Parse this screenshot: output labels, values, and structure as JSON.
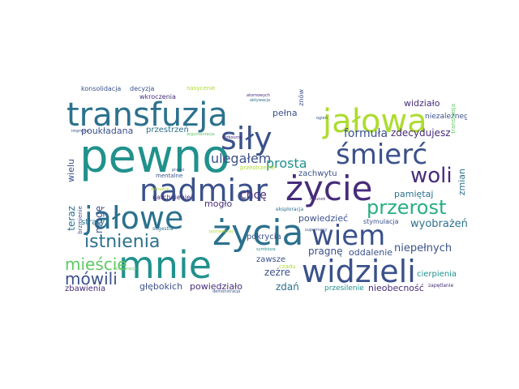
{
  "palette": {
    "dark_purple": "#472c7a",
    "indigo": "#3b518b",
    "blue": "#2c718e",
    "teal": "#21918c",
    "sea_green": "#28ae80",
    "green": "#5ec962",
    "lime": "#addc30",
    "yellow": "#d8e219"
  },
  "cloud": {
    "words": [
      {
        "text": "pewno",
        "color": "#21918c"
      },
      {
        "text": "mnie",
        "color": "#21918c"
      },
      {
        "text": "życie",
        "color": "#472c7a"
      },
      {
        "text": "życia",
        "color": "#2c718e"
      },
      {
        "text": "transfuzja",
        "color": "#2c718e"
      },
      {
        "text": "nadmiar",
        "color": "#3b518b"
      },
      {
        "text": "jałowe",
        "color": "#2c718e"
      },
      {
        "text": "jałowa",
        "color": "#addc30"
      },
      {
        "text": "śmierć",
        "color": "#3b518b"
      },
      {
        "text": "siły",
        "color": "#3b518b"
      },
      {
        "text": "widzieli",
        "color": "#3b518b"
      },
      {
        "text": "wiem",
        "color": "#3b518b"
      },
      {
        "text": "przerost",
        "color": "#28ae80"
      },
      {
        "text": "woli",
        "color": "#472c7a"
      },
      {
        "text": "istnienia",
        "color": "#2c718e"
      },
      {
        "text": "mieście",
        "color": "#5ec962"
      },
      {
        "text": "mówili",
        "color": "#3b518b"
      },
      {
        "text": "ulegałem",
        "color": "#3b518b"
      },
      {
        "text": "formuła",
        "color": "#3b518b"
      },
      {
        "text": "prosta",
        "color": "#21918c"
      },
      {
        "text": "zdecydujesz",
        "color": "#472c7a"
      },
      {
        "text": "poukładana",
        "color": "#3b518b"
      },
      {
        "text": "przestrzeń",
        "color": "#2c718e"
      },
      {
        "text": "pragnę",
        "color": "#3b518b"
      },
      {
        "text": "oddalenie",
        "color": "#3b518b"
      },
      {
        "text": "niepełnych",
        "color": "#3b518b"
      },
      {
        "text": "wyobrażeń",
        "color": "#2c718e"
      },
      {
        "text": "pamiętaj",
        "color": "#2c718e"
      },
      {
        "text": "zachwytu",
        "color": "#3b518b"
      },
      {
        "text": "chcę",
        "color": "#472c7a"
      },
      {
        "text": "mogło",
        "color": "#472c7a"
      },
      {
        "text": "powiedzieć",
        "color": "#3b518b"
      },
      {
        "text": "zeżre",
        "color": "#3b518b"
      },
      {
        "text": "zawsze",
        "color": "#3b518b"
      },
      {
        "text": "zdań",
        "color": "#2c718e"
      },
      {
        "text": "nieobecność",
        "color": "#472c7a"
      },
      {
        "text": "powiedziało",
        "color": "#472c7a"
      },
      {
        "text": "głębokich",
        "color": "#3b518b"
      },
      {
        "text": "zbawienia",
        "color": "#472c7a"
      },
      {
        "text": "cierpienia",
        "color": "#21918c"
      },
      {
        "text": "przesilenie",
        "color": "#21918c"
      },
      {
        "text": "pokrycia",
        "color": "#3b518b"
      },
      {
        "text": "pełna",
        "color": "#3b518b"
      },
      {
        "text": "widziało",
        "color": "#472c7a"
      },
      {
        "text": "niezależnego",
        "color": "#3b518b"
      },
      {
        "text": "zmian",
        "color": "#2c718e"
      },
      {
        "text": "teraz",
        "color": "#2c718e"
      },
      {
        "text": "wielu",
        "color": "#3b518b"
      },
      {
        "text": "mogę",
        "color": "#3b518b"
      },
      {
        "text": "straty",
        "color": "#2c718e"
      },
      {
        "text": "natchnienie",
        "color": "#472c7a"
      },
      {
        "text": "mentalne",
        "color": "#3b518b"
      },
      {
        "text": "stymulacja",
        "color": "#3b518b"
      },
      {
        "text": "konsolidacja",
        "color": "#3b518b"
      },
      {
        "text": "decyzja",
        "color": "#3b518b"
      },
      {
        "text": "nasycenie",
        "color": "#addc30"
      },
      {
        "text": "wkroczenia",
        "color": "#472c7a"
      },
      {
        "text": "znów",
        "color": "#3b518b"
      },
      {
        "text": "brzmienie",
        "color": "#3b518b"
      },
      {
        "text": "transmisja",
        "color": "#5ec962"
      },
      {
        "text": "przestrzenie",
        "color": "#addc30"
      },
      {
        "text": "czadu",
        "color": "#addc30"
      },
      {
        "text": "sugestia",
        "color": "#2c718e"
      },
      {
        "text": "eksploracja",
        "color": "#2c718e"
      },
      {
        "text": "atomowych",
        "color": "#472c7a"
      },
      {
        "text": "rozkoszne",
        "color": "#472c7a"
      },
      {
        "text": "zapętlanie",
        "color": "#472c7a"
      },
      {
        "text": "impresja",
        "color": "#3b518b"
      },
      {
        "text": "doznanie",
        "color": "#addc30"
      },
      {
        "text": "supermocy",
        "color": "#3b518b"
      },
      {
        "text": "symbioza",
        "color": "#21918c"
      },
      {
        "text": "poznawczej",
        "color": "#addc30"
      },
      {
        "text": "aktywacja",
        "color": "#2c718e"
      },
      {
        "text": "argumentacja",
        "color": "#5ec962"
      },
      {
        "text": "ogień",
        "color": "#3b518b"
      },
      {
        "text": "prawo",
        "color": "#3b518b"
      },
      {
        "text": "demonstracja",
        "color": "#3b518b"
      },
      {
        "text": "ratunek",
        "color": "#472c7a"
      },
      {
        "text": "eksploracja",
        "color": "#5ec962"
      }
    ]
  }
}
